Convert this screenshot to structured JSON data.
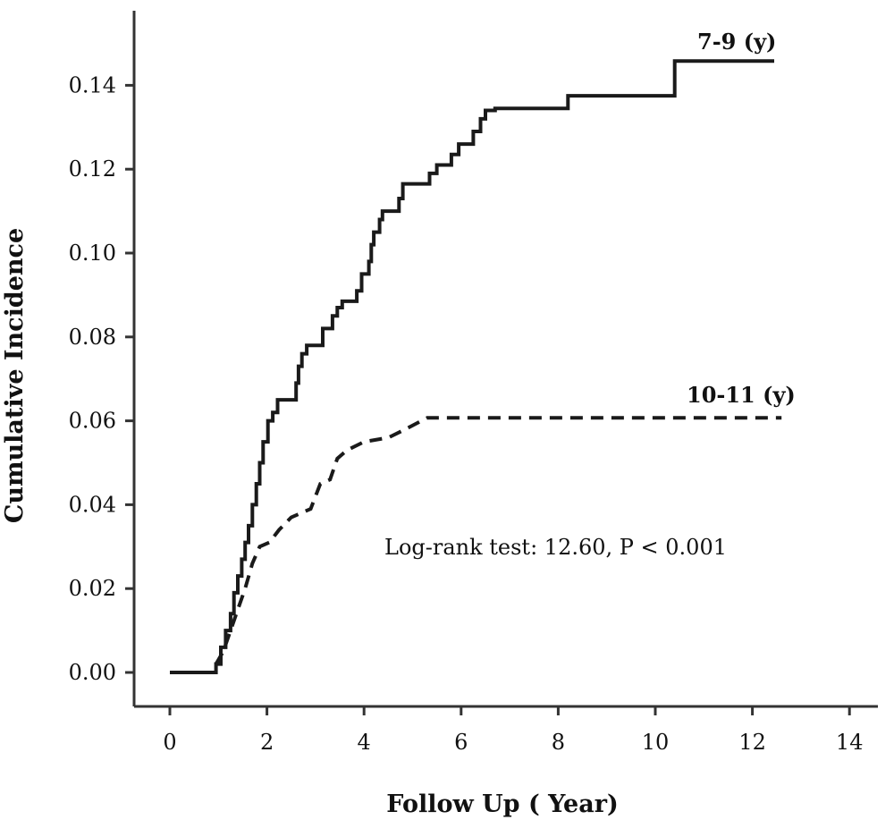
{
  "chart_data": {
    "type": "line",
    "xlabel": "Follow Up ( Year)",
    "ylabel": "Cumulative Incidence",
    "xlim": [
      0,
      14
    ],
    "ylim": [
      0,
      0.15
    ],
    "x_ticks": [
      {
        "value": 0,
        "label": "0"
      },
      {
        "value": 2,
        "label": "2"
      },
      {
        "value": 4,
        "label": "4"
      },
      {
        "value": 6,
        "label": "6"
      },
      {
        "value": 8,
        "label": "8"
      },
      {
        "value": 10,
        "label": "10"
      },
      {
        "value": 12,
        "label": "12"
      },
      {
        "value": 14,
        "label": "14"
      }
    ],
    "y_ticks": [
      {
        "value": 0.0,
        "label": "0.00"
      },
      {
        "value": 0.02,
        "label": "0.02"
      },
      {
        "value": 0.04,
        "label": "0.04"
      },
      {
        "value": 0.06,
        "label": "0.06"
      },
      {
        "value": 0.08,
        "label": "0.08"
      },
      {
        "value": 0.1,
        "label": "0.10"
      },
      {
        "value": 0.12,
        "label": "0.12"
      },
      {
        "value": 0.14,
        "label": "0.14"
      }
    ],
    "grid": false,
    "series": [
      {
        "name": "7-9 (y)",
        "style": "solid",
        "color": "#1a1a1a",
        "points": [
          [
            0,
            0
          ],
          [
            0.95,
            0
          ],
          [
            0.95,
            0.002
          ],
          [
            1.05,
            0.002
          ],
          [
            1.05,
            0.006
          ],
          [
            1.15,
            0.006
          ],
          [
            1.15,
            0.01
          ],
          [
            1.25,
            0.01
          ],
          [
            1.25,
            0.014
          ],
          [
            1.32,
            0.014
          ],
          [
            1.32,
            0.019
          ],
          [
            1.4,
            0.019
          ],
          [
            1.4,
            0.023
          ],
          [
            1.48,
            0.023
          ],
          [
            1.48,
            0.027
          ],
          [
            1.55,
            0.027
          ],
          [
            1.55,
            0.031
          ],
          [
            1.62,
            0.031
          ],
          [
            1.62,
            0.035
          ],
          [
            1.7,
            0.035
          ],
          [
            1.7,
            0.04
          ],
          [
            1.78,
            0.04
          ],
          [
            1.78,
            0.045
          ],
          [
            1.85,
            0.045
          ],
          [
            1.85,
            0.05
          ],
          [
            1.92,
            0.05
          ],
          [
            1.92,
            0.055
          ],
          [
            2.02,
            0.055
          ],
          [
            2.02,
            0.06
          ],
          [
            2.12,
            0.06
          ],
          [
            2.12,
            0.062
          ],
          [
            2.22,
            0.062
          ],
          [
            2.22,
            0.065
          ],
          [
            2.6,
            0.065
          ],
          [
            2.6,
            0.069
          ],
          [
            2.65,
            0.069
          ],
          [
            2.65,
            0.073
          ],
          [
            2.72,
            0.073
          ],
          [
            2.72,
            0.076
          ],
          [
            2.82,
            0.076
          ],
          [
            2.82,
            0.078
          ],
          [
            3.15,
            0.078
          ],
          [
            3.15,
            0.082
          ],
          [
            3.35,
            0.082
          ],
          [
            3.35,
            0.085
          ],
          [
            3.45,
            0.085
          ],
          [
            3.45,
            0.087
          ],
          [
            3.55,
            0.087
          ],
          [
            3.55,
            0.0885
          ],
          [
            3.85,
            0.0885
          ],
          [
            3.85,
            0.091
          ],
          [
            3.95,
            0.091
          ],
          [
            3.95,
            0.095
          ],
          [
            4.1,
            0.095
          ],
          [
            4.1,
            0.098
          ],
          [
            4.15,
            0.098
          ],
          [
            4.15,
            0.102
          ],
          [
            4.2,
            0.102
          ],
          [
            4.2,
            0.105
          ],
          [
            4.32,
            0.105
          ],
          [
            4.32,
            0.108
          ],
          [
            4.38,
            0.108
          ],
          [
            4.38,
            0.11
          ],
          [
            4.72,
            0.11
          ],
          [
            4.72,
            0.113
          ],
          [
            4.8,
            0.113
          ],
          [
            4.8,
            0.1165
          ],
          [
            5.35,
            0.1165
          ],
          [
            5.35,
            0.119
          ],
          [
            5.5,
            0.119
          ],
          [
            5.5,
            0.121
          ],
          [
            5.8,
            0.121
          ],
          [
            5.8,
            0.1235
          ],
          [
            5.95,
            0.1235
          ],
          [
            5.95,
            0.126
          ],
          [
            6.25,
            0.126
          ],
          [
            6.25,
            0.129
          ],
          [
            6.4,
            0.129
          ],
          [
            6.4,
            0.132
          ],
          [
            6.5,
            0.132
          ],
          [
            6.5,
            0.134
          ],
          [
            6.7,
            0.134
          ],
          [
            6.7,
            0.1345
          ],
          [
            8.2,
            0.1345
          ],
          [
            8.2,
            0.1375
          ],
          [
            10.4,
            0.1375
          ],
          [
            10.4,
            0.1458
          ],
          [
            12.45,
            0.1458
          ]
        ]
      },
      {
        "name": "10-11 (y)",
        "style": "dashed",
        "color": "#1a1a1a",
        "points": [
          [
            0.95,
            0.002
          ],
          [
            1.1,
            0.005
          ],
          [
            1.25,
            0.01
          ],
          [
            1.4,
            0.015
          ],
          [
            1.55,
            0.02
          ],
          [
            1.7,
            0.026
          ],
          [
            1.85,
            0.03
          ],
          [
            2.05,
            0.031
          ],
          [
            2.25,
            0.034
          ],
          [
            2.5,
            0.037
          ],
          [
            2.9,
            0.039
          ],
          [
            3.1,
            0.045
          ],
          [
            3.3,
            0.046
          ],
          [
            3.45,
            0.051
          ],
          [
            3.65,
            0.053
          ],
          [
            4.0,
            0.055
          ],
          [
            4.5,
            0.056
          ],
          [
            4.85,
            0.058
          ],
          [
            5.3,
            0.0607
          ],
          [
            12.6,
            0.0607
          ]
        ]
      }
    ],
    "annotation": "Log-rank test: 12.60, P < 0.001"
  }
}
